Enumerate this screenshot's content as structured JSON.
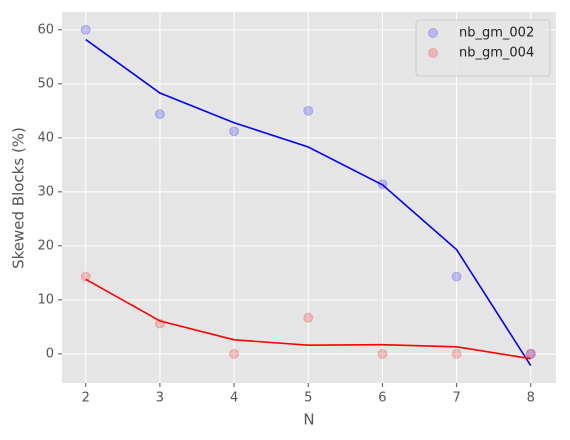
{
  "chart_data": {
    "type": "scatter",
    "x_label": "N",
    "y_label": "Skewed Blocks (%)",
    "x": [
      2,
      3,
      4,
      5,
      6,
      7,
      8
    ],
    "series": [
      {
        "name": "nb_gm_002",
        "color": "#0000ff",
        "values": [
          60,
          44.4,
          41.2,
          45,
          31.4,
          14.3,
          0
        ],
        "fit": [
          58.2,
          48.3,
          42.8,
          38.3,
          31.3,
          19.3,
          -2.2
        ]
      },
      {
        "name": "nb_gm_004",
        "color": "#ff0000",
        "values": [
          14.3,
          5.6,
          0,
          6.7,
          0,
          0,
          0
        ],
        "fit": [
          13.8,
          6.1,
          2.6,
          1.6,
          1.7,
          1.3,
          -0.9
        ]
      }
    ],
    "xlim": [
      1.68,
      8.34
    ],
    "xticks": [
      2,
      3,
      4,
      5,
      6,
      7,
      8
    ],
    "ylim": [
      -5.4,
      63.3
    ],
    "yticks": [
      0,
      10,
      20,
      30,
      40,
      50,
      60
    ],
    "grid": true,
    "legend": "upper-right"
  }
}
